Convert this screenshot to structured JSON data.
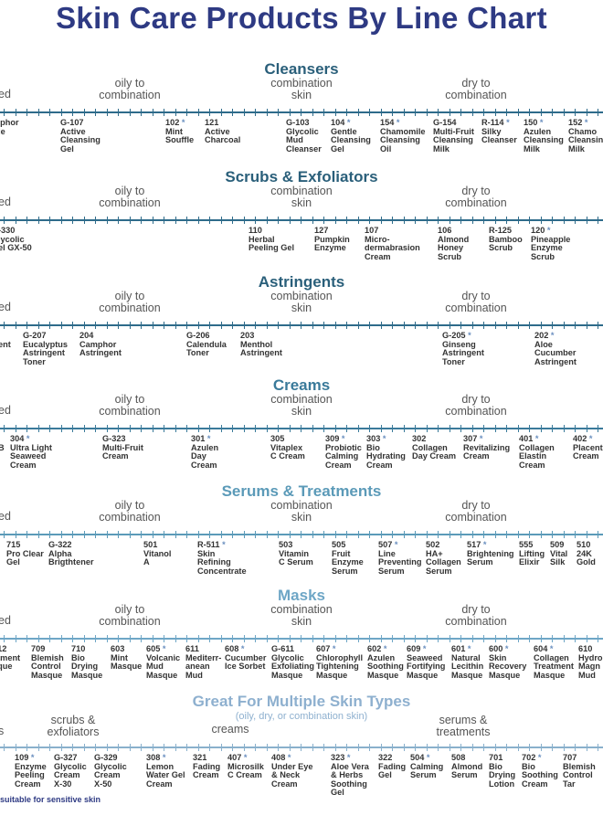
{
  "page_title": "Skin Care Products By Line Chart",
  "footnote": "suitable for sensitive skin",
  "colors": {
    "title": "#2e3a83",
    "teal": "#2a5f7a",
    "line": "#2e6b8a",
    "light": "#89b0cc",
    "muted_title": "#8eb0cf"
  },
  "sections": [
    {
      "id": "cleansers",
      "title": "Cleansers",
      "zones": [
        "ed",
        "oily to\ncombination",
        "combination\nskin",
        "dry to\ncombination"
      ],
      "products": [
        {
          "id": "",
          "name": "mphor\nffle",
          "star": false
        },
        {
          "id": "G-107",
          "name": "Active\nCleansing\nGel",
          "star": false
        },
        {
          "id": "102",
          "name": "Mint\nSouffle",
          "star": true
        },
        {
          "id": "121",
          "name": "Active\nCharcoal",
          "star": false
        },
        {
          "id": "G-103",
          "name": "Glycolic\nMud\nCleanser",
          "star": false
        },
        {
          "id": "104",
          "name": "Gentle\nCleansing\nGel",
          "star": true
        },
        {
          "id": "154",
          "name": "Chamomile\nCleansing\nOil",
          "star": true
        },
        {
          "id": "G-154",
          "name": "Multi-Fruit\nCleansing\nMilk",
          "star": false
        },
        {
          "id": "R-114",
          "name": "Silky\nCleanser",
          "star": true
        },
        {
          "id": "150",
          "name": "Azulen\nCleansing\nMilk",
          "star": true
        },
        {
          "id": "152",
          "name": "Chamo\nCleansin\nMilk",
          "star": true
        }
      ]
    },
    {
      "id": "scrubs",
      "title": "Scrubs & Exfoliators",
      "zones": [
        "ed",
        "oily to\ncombination",
        "combination\nskin",
        "dry to\ncombination"
      ],
      "products": [
        {
          "id": "-330",
          "name": "lycolic\nel GX-50",
          "star": false
        },
        {
          "id": "110",
          "name": "Herbal\nPeeling Gel",
          "star": false
        },
        {
          "id": "127",
          "name": "Pumpkin\nEnzyme",
          "star": false
        },
        {
          "id": "107",
          "name": "Micro-\ndermabrasion\nCream",
          "star": false
        },
        {
          "id": "106",
          "name": "Almond\nHoney\nScrub",
          "star": false
        },
        {
          "id": "R-125",
          "name": "Bamboo\nScrub",
          "star": false
        },
        {
          "id": "120",
          "name": "Pineapple\nEnzyme\nScrub",
          "star": true
        }
      ]
    },
    {
      "id": "astringents",
      "title": "Astringents",
      "zones": [
        "ed",
        "oily to\ncombination",
        "combination\nskin",
        "dry to\ncombination"
      ],
      "products": [
        {
          "id": "",
          "name": "\nent",
          "star": false
        },
        {
          "id": "G-207",
          "name": "Eucalyptus\nAstringent\nToner",
          "star": false
        },
        {
          "id": "204",
          "name": "Camphor\nAstringent",
          "star": false
        },
        {
          "id": "G-206",
          "name": "Calendula\nToner",
          "star": false
        },
        {
          "id": "203",
          "name": "Menthol\nAstringent",
          "star": false
        },
        {
          "id": "G-205",
          "name": "Ginseng\nAstringent\nToner",
          "star": true
        },
        {
          "id": "202",
          "name": "Aloe\nCucumber\nAstringent",
          "star": true
        }
      ]
    },
    {
      "id": "creams",
      "title": "Creams",
      "zones": [
        "ed",
        "oily to\ncombination",
        "combination\nskin",
        "dry to\ncombination"
      ],
      "products": [
        {
          "id": "",
          "name": "\nB",
          "star": false
        },
        {
          "id": "304",
          "name": "Ultra Light\nSeaweed\nCream",
          "star": true
        },
        {
          "id": "G-323",
          "name": "Multi-Fruit\nCream",
          "star": false
        },
        {
          "id": "301",
          "name": "Azulen\nDay\nCream",
          "star": true
        },
        {
          "id": "305",
          "name": "Vitaplex\nC Cream",
          "star": false
        },
        {
          "id": "309",
          "name": "Probiotic\nCalming\nCream",
          "star": true
        },
        {
          "id": "303",
          "name": "Bio\nHydrating\nCream",
          "star": true
        },
        {
          "id": "302",
          "name": "Collagen\nDay Cream",
          "star": false
        },
        {
          "id": "307",
          "name": "Revitalizing\nCream",
          "star": true
        },
        {
          "id": "401",
          "name": "Collagen\nElastin\nCream",
          "star": true
        },
        {
          "id": "402",
          "name": "Placent\nCream",
          "star": true
        }
      ]
    },
    {
      "id": "serums",
      "title": "Serums & Treatments",
      "zones": [
        "ed",
        "oily to\ncombination",
        "combination\nskin",
        "dry to\ncombination"
      ],
      "products": [
        {
          "id": "715",
          "name": "Pro Clear\nGel",
          "star": false
        },
        {
          "id": "G-322",
          "name": "Alpha\nBrigthtener",
          "star": false
        },
        {
          "id": "501",
          "name": "Vitanol\nA",
          "star": false
        },
        {
          "id": "R-511",
          "name": "Skin\nRefining\nConcentrate",
          "star": true
        },
        {
          "id": "503",
          "name": "Vitamin\nC Serum",
          "star": false
        },
        {
          "id": "505",
          "name": "Fruit\nEnzyme\nSerum",
          "star": false
        },
        {
          "id": "507",
          "name": "Line\nPreventing\nSerum",
          "star": true
        },
        {
          "id": "502",
          "name": "HA+\nCollagen\nSerum",
          "star": false
        },
        {
          "id": "517",
          "name": "Brightening\nSerum",
          "star": true
        },
        {
          "id": "555",
          "name": "Lifting\nElixir",
          "star": false
        },
        {
          "id": "509",
          "name": "Vital\nSilk",
          "star": false
        },
        {
          "id": "510",
          "name": "24K\nGold",
          "star": false
        }
      ]
    },
    {
      "id": "masks",
      "title": "Masks",
      "zones": [
        "ed",
        "oily to\ncombination",
        "combination\nskin",
        "dry to\ncombination"
      ],
      "products": [
        {
          "id": "712",
          "name": "atment\nsque",
          "star": false
        },
        {
          "id": "709",
          "name": "Blemish\nControl\nMasque",
          "star": false
        },
        {
          "id": "710",
          "name": "Bio\nDrying\nMasque",
          "star": false
        },
        {
          "id": "603",
          "name": "Mint\nMasque",
          "star": false
        },
        {
          "id": "605",
          "name": "Volcanic\nMud\nMasque",
          "star": true
        },
        {
          "id": "611",
          "name": "Mediterr-\nanean\nMud",
          "star": false
        },
        {
          "id": "608",
          "name": "Cucumber\nIce Sorbet",
          "star": true
        },
        {
          "id": "G-611",
          "name": "Glycolic\nExfoliating\nMasque",
          "star": false
        },
        {
          "id": "607",
          "name": "Chlorophyll\nTightening\nMasque",
          "star": true
        },
        {
          "id": "602",
          "name": "Azulen\nSoothing\nMasque",
          "star": true
        },
        {
          "id": "609",
          "name": "Seaweed\nFortifying\nMasque",
          "star": true
        },
        {
          "id": "601",
          "name": "Natural\nLecithin\nMasque",
          "star": true
        },
        {
          "id": "600",
          "name": "Skin\nRecovery\nMasque",
          "star": true
        },
        {
          "id": "604",
          "name": "Collagen\nTreatment\nMasque",
          "star": true
        },
        {
          "id": "610",
          "name": "Hydro\nMagn\nMud",
          "star": false
        }
      ]
    },
    {
      "id": "multiple",
      "title": "Great For Multiple Skin Types",
      "subtitle": "(oily, dry, or combination skin)",
      "zones": [
        "s",
        "scrubs &\nexfoliators",
        "creams",
        "serums &\ntreatments"
      ],
      "products": [
        {
          "id": "109",
          "name": "Enzyme\nPeeling\nCream",
          "star": true
        },
        {
          "id": "G-327",
          "name": "Glycolic\nCream\nX-30",
          "star": false
        },
        {
          "id": "G-329",
          "name": "Glycolic\nCream\nX-50",
          "star": false
        },
        {
          "id": "308",
          "name": "Lemon\nWater Gel\nCream",
          "star": true
        },
        {
          "id": "321",
          "name": "Fading\nCream",
          "star": false
        },
        {
          "id": "407",
          "name": "Microsilk\nC Cream",
          "star": true
        },
        {
          "id": "408",
          "name": "Under Eye\n& Neck\nCream",
          "star": true
        },
        {
          "id": "323",
          "name": "Aloe Vera\n& Herbs\nSoothing\nGel",
          "star": true
        },
        {
          "id": "322",
          "name": "Fading\nGel",
          "star": false
        },
        {
          "id": "504",
          "name": "Calming\nSerum",
          "star": true
        },
        {
          "id": "508",
          "name": "Almond\nSerum",
          "star": false
        },
        {
          "id": "701",
          "name": "Bio\nDrying\nLotion",
          "star": false
        },
        {
          "id": "702",
          "name": "Bio\nSoothing\nCream",
          "star": true
        },
        {
          "id": "707",
          "name": "Blemish\nControl\nTar",
          "star": false
        }
      ]
    }
  ]
}
